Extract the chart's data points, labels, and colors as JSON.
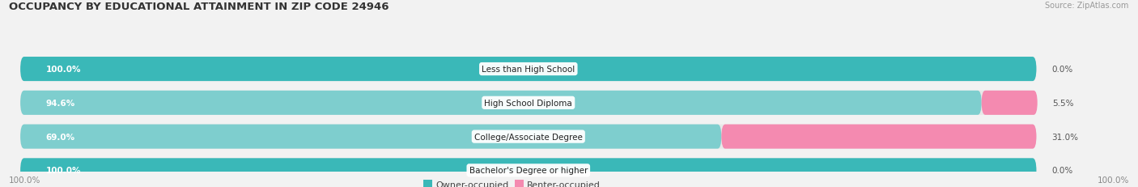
{
  "title": "OCCUPANCY BY EDUCATIONAL ATTAINMENT IN ZIP CODE 24946",
  "source": "Source: ZipAtlas.com",
  "categories": [
    "Less than High School",
    "High School Diploma",
    "College/Associate Degree",
    "Bachelor's Degree or higher"
  ],
  "owner_pct": [
    100.0,
    94.6,
    69.0,
    100.0
  ],
  "renter_pct": [
    0.0,
    5.5,
    31.0,
    0.0
  ],
  "owner_color_full": "#3ab8b8",
  "owner_color_partial": "#7ecece",
  "renter_color": "#f48ab0",
  "bar_bg_color": "#e8e8e8",
  "background_color": "#f2f2f2",
  "title_fontsize": 9.5,
  "label_fontsize": 7.5,
  "pct_fontsize": 7.5,
  "source_fontsize": 7,
  "legend_fontsize": 8
}
